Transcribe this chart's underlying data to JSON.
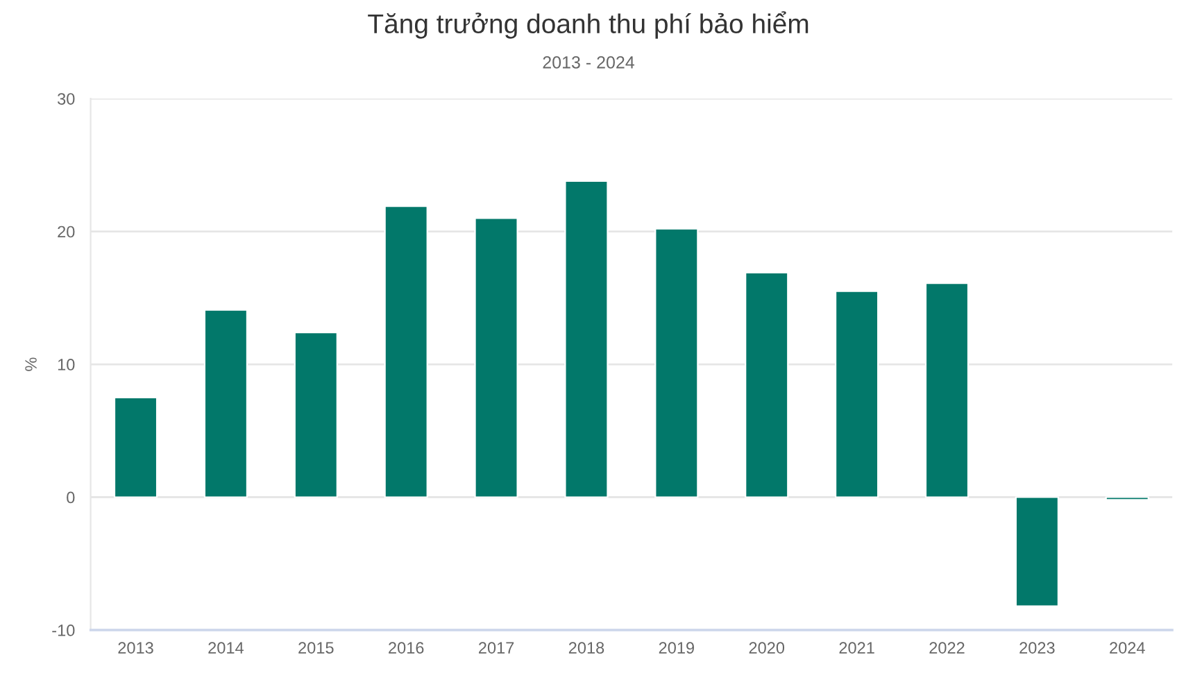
{
  "chart_data": {
    "type": "bar",
    "title": "Tăng trưởng doanh thu phí bảo hiểm",
    "subtitle": "2013 - 2024",
    "ylabel": "%",
    "categories": [
      "2013",
      "2014",
      "2015",
      "2016",
      "2017",
      "2018",
      "2019",
      "2020",
      "2021",
      "2022",
      "2023",
      "2024"
    ],
    "values": [
      7.5,
      14.1,
      12.4,
      21.9,
      21.0,
      23.8,
      20.2,
      16.9,
      15.5,
      16.1,
      -8.2,
      -0.2
    ],
    "color": "#02786a",
    "ylim": [
      -10,
      30
    ],
    "yticks": [
      -10,
      0,
      10,
      20,
      30
    ],
    "grid": "y",
    "legend": false
  }
}
